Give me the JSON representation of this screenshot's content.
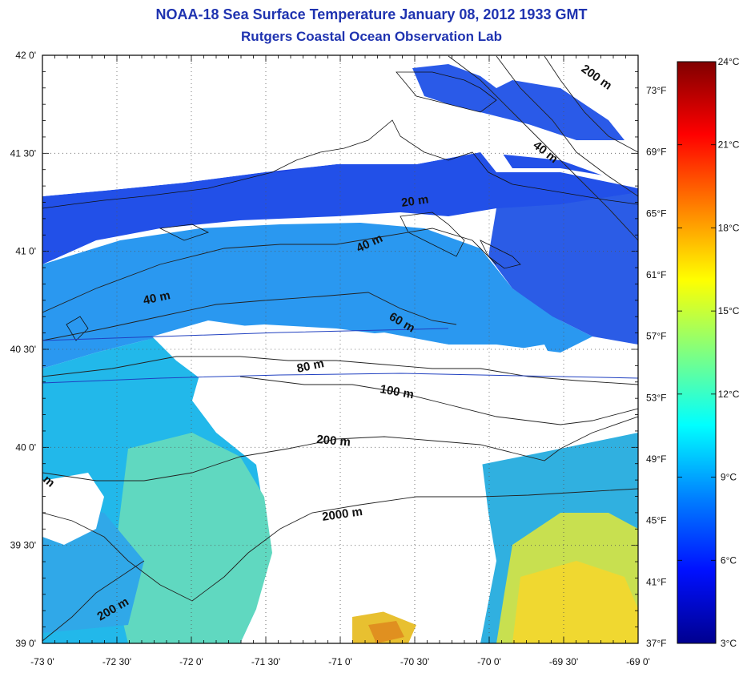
{
  "title": "NOAA-18 Sea Surface Temperature January 08, 2012 1933 GMT",
  "subtitle": "Rutgers Coastal Ocean Observation Lab",
  "map": {
    "lon_range": [
      -73,
      -69
    ],
    "lat_range": [
      39,
      42
    ],
    "lon_ticks": [
      {
        "value": -73.0,
        "label": "-73 0'"
      },
      {
        "value": -72.5,
        "label": "-72 30'"
      },
      {
        "value": -72.0,
        "label": "-72 0'"
      },
      {
        "value": -71.5,
        "label": "-71 30'"
      },
      {
        "value": -71.0,
        "label": "-71 0'"
      },
      {
        "value": -70.5,
        "label": "-70 30'"
      },
      {
        "value": -70.0,
        "label": "-70 0'"
      },
      {
        "value": -69.5,
        "label": "-69 30'"
      },
      {
        "value": -69.0,
        "label": "-69 0'"
      }
    ],
    "lat_ticks": [
      {
        "value": 42.0,
        "label": "42 0'"
      },
      {
        "value": 41.5,
        "label": "41 30'"
      },
      {
        "value": 41.0,
        "label": "41 0'"
      },
      {
        "value": 40.5,
        "label": "40 30'"
      },
      {
        "value": 40.0,
        "label": "40 0'"
      },
      {
        "value": 39.5,
        "label": "39 30'"
      },
      {
        "value": 39.0,
        "label": "39 0'"
      }
    ],
    "fahrenheit_ticks": [
      "73°F",
      "69°F",
      "65°F",
      "61°F",
      "57°F",
      "53°F",
      "49°F",
      "45°F",
      "41°F",
      "37°F"
    ],
    "isobath_labels": [
      "20 m",
      "40 m",
      "40 m",
      "40 m",
      "60 m",
      "80 m",
      "100 m",
      "200 m",
      "200 m",
      "200 m",
      "2000 m",
      "m"
    ]
  },
  "colorbar": {
    "range": [
      3,
      24
    ],
    "unit": "°C",
    "labels": [
      "24°C",
      "21°C",
      "18°C",
      "15°C",
      "12°C",
      "9°C",
      "6°C",
      "3°C"
    ],
    "colors": [
      "#00008f",
      "#0010ff",
      "#0080ff",
      "#00ffff",
      "#80ff80",
      "#ffff00",
      "#ff8000",
      "#ff0000",
      "#800000"
    ]
  }
}
